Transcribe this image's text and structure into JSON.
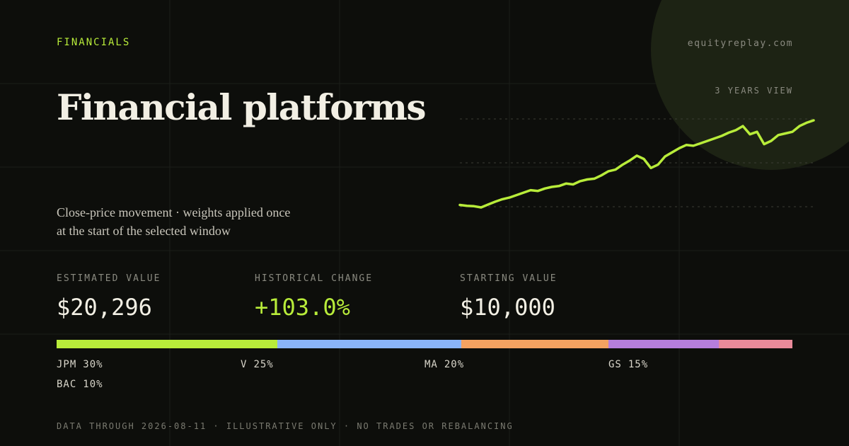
{
  "kicker": "FINANCIALS",
  "site": "equityreplay.com",
  "title": "Financial platforms",
  "subtitle_lines": [
    "Close-price movement · weights applied once",
    "at the start of the selected window"
  ],
  "chart_data": {
    "type": "line",
    "label": "3 YEARS VIEW",
    "color": "#b8ec3a",
    "values": [
      10000,
      9900,
      9850,
      9700,
      10050,
      10400,
      10700,
      10900,
      11200,
      11500,
      11800,
      11700,
      12000,
      12200,
      12300,
      12600,
      12500,
      12900,
      13100,
      13200,
      13600,
      14100,
      14300,
      14900,
      15400,
      16000,
      15600,
      14500,
      14900,
      15900,
      16400,
      16900,
      17300,
      17200,
      17500,
      17800,
      18100,
      18400,
      18800,
      19100,
      19600,
      18600,
      18900,
      17400,
      17800,
      18500,
      18700,
      18900,
      19600,
      20000,
      20296
    ]
  },
  "stats": [
    {
      "label": "ESTIMATED VALUE",
      "value": "$20,296"
    },
    {
      "label": "HISTORICAL CHANGE",
      "value": "+103.0%"
    },
    {
      "label": "STARTING VALUE",
      "value": "$10,000"
    }
  ],
  "allocation": [
    {
      "ticker": "JPM",
      "weight": 30,
      "weight_label": "30%",
      "color": "#b8ec3a"
    },
    {
      "ticker": "V",
      "weight": 25,
      "weight_label": "25%",
      "color": "#8ab4f8"
    },
    {
      "ticker": "MA",
      "weight": 20,
      "weight_label": "20%",
      "color": "#f4a261"
    },
    {
      "ticker": "GS",
      "weight": 15,
      "weight_label": "15%",
      "color": "#b57edc"
    },
    {
      "ticker": "BAC",
      "weight": 10,
      "weight_label": "10%",
      "color": "#e88a9a"
    }
  ],
  "footer": "DATA THROUGH 2026-08-11 · ILLUSTRATIVE ONLY · NO TRADES OR REBALANCING"
}
